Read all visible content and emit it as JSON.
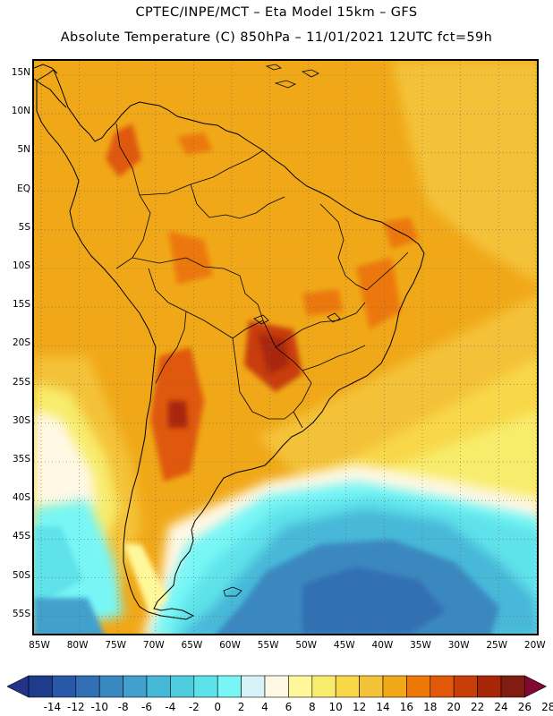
{
  "header": {
    "title_line1": "CPTEC/INPE/MCT –  Eta Model 15km – GFS",
    "title_line2": "Absolute Temperature (C) 850hPa – 11/01/2021 12UTC fct=59h"
  },
  "axes": {
    "lat_labels": [
      "15N",
      "10N",
      "5N",
      "EQ",
      "5S",
      "10S",
      "15S",
      "20S",
      "25S",
      "30S",
      "35S",
      "40S",
      "45S",
      "50S",
      "55S"
    ],
    "lon_labels": [
      "85W",
      "80W",
      "75W",
      "70W",
      "65W",
      "60W",
      "55W",
      "50W",
      "45W",
      "40W",
      "35W",
      "30W",
      "25W",
      "20W"
    ]
  },
  "colorbar": {
    "labels": [
      "-14",
      "-12",
      "-10",
      "-8",
      "-6",
      "-4",
      "-2",
      "0",
      "2",
      "4",
      "6",
      "8",
      "10",
      "12",
      "14",
      "16",
      "18",
      "20",
      "22",
      "24",
      "26",
      "28"
    ],
    "colors": [
      "#1f3c8a",
      "#2a58a8",
      "#3170b4",
      "#3a88c0",
      "#42a0cc",
      "#46b8d8",
      "#50ccdf",
      "#5ee2ea",
      "#78f6f6",
      "#d6f4f8",
      "#fff8e4",
      "#fff89a",
      "#f8ec6c",
      "#f8d848",
      "#f4c238",
      "#f0a818",
      "#ec7808",
      "#e05808",
      "#c83e08",
      "#a82608",
      "#801c10"
    ],
    "under_color": "#23338a",
    "over_color": "#800a30"
  }
}
